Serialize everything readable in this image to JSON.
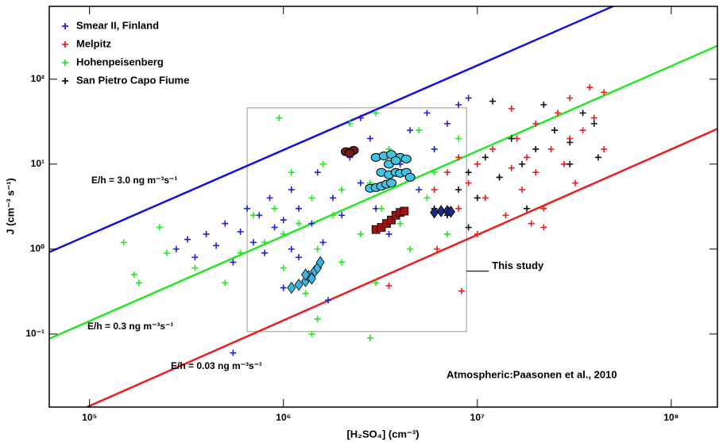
{
  "chart_data": {
    "type": "scatter",
    "xlabel": "[H₂SO₄] (cm⁻³)",
    "ylabel": "J (cm⁻³ s⁻¹)",
    "xscale": "log",
    "yscale": "log",
    "xlim": [
      62000,
      173000000
    ],
    "ylim": [
      0.0138,
      720
    ],
    "xticks": [
      {
        "value": 100000,
        "label": "10⁵"
      },
      {
        "value": 1000000,
        "label": "10⁶"
      },
      {
        "value": 10000000,
        "label": "10⁷"
      },
      {
        "value": 100000000,
        "label": "10⁸"
      }
    ],
    "yticks": [
      {
        "value": 0.1,
        "label": "10⁻¹"
      },
      {
        "value": 1,
        "label": "10⁰"
      },
      {
        "value": 10,
        "label": "10¹"
      },
      {
        "value": 100,
        "label": "10²"
      }
    ],
    "legend": "upper left",
    "series": [
      {
        "name": "Smear II, Finland",
        "color": "#1f1fe0",
        "marker": "plus",
        "x": [
          280000,
          320000,
          350000,
          400000,
          450000,
          500000,
          550000,
          600000,
          650000,
          700000,
          750000,
          800000,
          850000,
          900000,
          1000000,
          1000000,
          1100000,
          1100000,
          1200000,
          1300000,
          1400000,
          1500000,
          1600000,
          1700000,
          1800000,
          2000000,
          2200000,
          2500000,
          2800000,
          3000000,
          3500000,
          4000000,
          4500000,
          5000000,
          5500000,
          6000000,
          7000000,
          8000000,
          9000000,
          550000,
          2500000,
          1200000
        ],
        "values": [
          1.0,
          1.3,
          0.8,
          1.5,
          1.1,
          2.0,
          0.7,
          1.6,
          3,
          1.2,
          2.5,
          0.9,
          4,
          1.8,
          2.2,
          0.35,
          5,
          1.0,
          3,
          0.5,
          2.0,
          8,
          1.2,
          0.25,
          4,
          2.5,
          12,
          6,
          20,
          3,
          1.5,
          10,
          25,
          5,
          40,
          15,
          30,
          50,
          60,
          0.06,
          35,
          0.8
        ]
      },
      {
        "name": "Melpitz",
        "color": "#ee1c1c",
        "marker": "plus",
        "x": [
          6000000,
          7000000,
          8000000,
          8000000,
          9000000,
          10000000,
          11000000,
          12000000,
          13000000,
          14000000,
          15000000,
          16000000,
          17000000,
          18000000,
          20000000,
          20000000,
          22000000,
          24000000,
          26000000,
          28000000,
          30000000,
          30000000,
          32000000,
          35000000,
          38000000,
          40000000,
          45000000,
          45000000,
          22000000,
          19000000,
          8300000,
          6200000,
          3500000,
          15000000,
          25000000,
          10000000
        ],
        "values": [
          5,
          8,
          3,
          12,
          6,
          10,
          4,
          15,
          7,
          2.5,
          9,
          20,
          5,
          12,
          8,
          30,
          3,
          15,
          40,
          10,
          60,
          20,
          6,
          25,
          80,
          35,
          70,
          15,
          1.8,
          2,
          0.32,
          1.0,
          0.37,
          45,
          25,
          1.5
        ]
      },
      {
        "name": "Hohenpeisenberg",
        "color": "#22e822",
        "marker": "plus",
        "x": [
          150000,
          170000,
          180000,
          230000,
          250000,
          350000,
          500000,
          600000,
          700000,
          800000,
          900000,
          1000000,
          1000000,
          1100000,
          1200000,
          1300000,
          1400000,
          1500000,
          1600000,
          1800000,
          2000000,
          2000000,
          2200000,
          2500000,
          2800000,
          3000000,
          3200000,
          3500000,
          4000000,
          4500000,
          5000000,
          5500000,
          6000000,
          7000000,
          8000000,
          1400000,
          2800000,
          3000000,
          950000,
          1500000
        ],
        "values": [
          1.2,
          0.5,
          0.4,
          1.8,
          0.9,
          0.6,
          0.4,
          0.9,
          2.5,
          1.2,
          3,
          1.5,
          0.6,
          8,
          2,
          0.3,
          4,
          1,
          10,
          2.5,
          5,
          0.7,
          30,
          1.5,
          6,
          0.4,
          3,
          15,
          2,
          1.0,
          25,
          4,
          8,
          1.5,
          20,
          0.1,
          0.09,
          40,
          35,
          0.15
        ]
      },
      {
        "name": "San Pietro Capo Fiume",
        "color": "#111111",
        "marker": "plus",
        "x": [
          6000000,
          7000000,
          8000000,
          9000000,
          10000000,
          11000000,
          13000000,
          15000000,
          17000000,
          20000000,
          22000000,
          25000000,
          30000000,
          35000000,
          40000000,
          42000000,
          12000000,
          18000000,
          9000000,
          30000000
        ],
        "values": [
          3,
          2.5,
          5,
          8,
          4,
          12,
          7,
          20,
          10,
          15,
          50,
          25,
          18,
          40,
          30,
          12,
          55,
          3,
          1.8,
          10
        ]
      },
      {
        "color": "#3ab4e4",
        "marker": "diamond",
        "x": [
          1100000,
          1200000,
          1300000,
          1350000,
          1400000,
          1450000,
          1500000,
          1550000,
          1300000
        ],
        "values": [
          0.35,
          0.38,
          0.42,
          0.48,
          0.45,
          0.55,
          0.6,
          0.7,
          0.5
        ]
      },
      {
        "color": "#7a1818",
        "marker": "circle",
        "x": [
          2100000,
          2300000,
          2200000
        ],
        "values": [
          14,
          14.5,
          13.5
        ]
      },
      {
        "color": "#40c4e4",
        "marker": "circle",
        "x": [
          2800000,
          3000000,
          3200000,
          3400000,
          3600000,
          3200000,
          3500000,
          3800000,
          4000000,
          4300000,
          3000000,
          3300000,
          3600000,
          4000000,
          4300000,
          3500000,
          3800000,
          4500000
        ],
        "values": [
          5.2,
          5.3,
          5.5,
          5.8,
          6,
          8,
          7.5,
          8,
          7.8,
          8,
          12,
          12.5,
          13,
          12,
          11.5,
          10,
          11,
          7
        ]
      },
      {
        "color": "#a01212",
        "marker": "square",
        "x": [
          3000000,
          3200000,
          3400000,
          3600000,
          3800000,
          4000000,
          4200000
        ],
        "values": [
          1.7,
          1.8,
          2.0,
          2.2,
          2.5,
          2.7,
          2.8
        ]
      },
      {
        "color": "#1a2a80",
        "marker": "diamond",
        "x": [
          6000000,
          6500000,
          7000000,
          7300000
        ],
        "values": [
          2.7,
          2.8,
          2.8,
          2.75
        ]
      }
    ],
    "lines": [
      {
        "label": "E/h = 3.0 ng m⁻³s⁻¹",
        "color": "#1010e0",
        "x": [
          62000,
          50000000
        ],
        "values": [
          0.92,
          720
        ]
      },
      {
        "label": "E/h = 0.3 ng m⁻³s⁻¹",
        "color": "#22e822",
        "x": [
          62000,
          173000000
        ],
        "values": [
          0.088,
          247
        ]
      },
      {
        "label": "E/h = 0.03 ng m⁻³s⁻¹",
        "color": "#ee1c1c",
        "x": [
          97000,
          173000000
        ],
        "values": [
          0.0138,
          26
        ]
      }
    ],
    "region": {
      "label": "This study",
      "x": [
        650000,
        8800000
      ],
      "values": [
        0.107,
        46
      ]
    },
    "annotations": [
      "Atmospheric:Paasonen et al., 2010"
    ]
  }
}
